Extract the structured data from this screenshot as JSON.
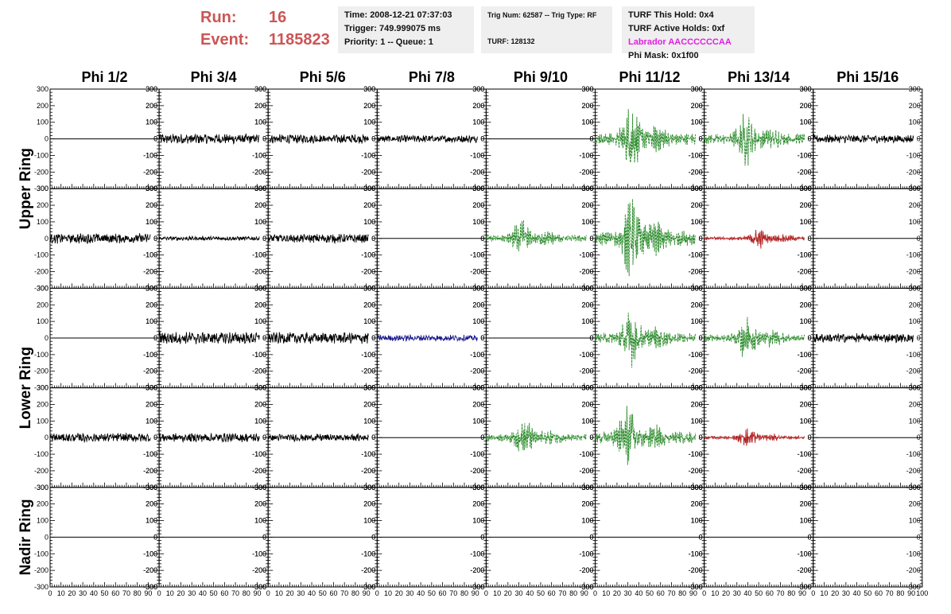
{
  "header": {
    "run_label": "Run:",
    "run_value": "16",
    "event_label": "Event:",
    "event_value": "1185823",
    "time": "Time: 2008-12-21 07:37:03",
    "trigger": "Trigger: 749.999075 ms",
    "priority": "Priority: 1 -- Queue: 1",
    "trig_num": "Trig Num: 62587 -- Trig Type: RF",
    "turf": "TURF: 128132",
    "turf_this_hold": "TURF This Hold: 0x4",
    "turf_active_holds": "TURF Active Holds: 0xf",
    "labrador": "Labrador AACCCCCCAA",
    "phi_mask": "Phi Mask: 0x1f00"
  },
  "chart_data": {
    "type": "line",
    "columns": [
      "Phi 1/2",
      "Phi 3/4",
      "Phi 5/6",
      "Phi 7/8",
      "Phi 9/10",
      "Phi 11/12",
      "Phi 13/14",
      "Phi 15/16"
    ],
    "rows": [
      "Upper Ring",
      "Lower Ring",
      "Nadir Ring"
    ],
    "row_label_spans": [
      2,
      2,
      1
    ],
    "ylim": [
      -300,
      300
    ],
    "y_ticks": [
      300,
      200,
      100,
      0,
      -100,
      -200,
      -300
    ],
    "xlim": [
      0,
      100
    ],
    "x_tick_labels": [
      "0",
      "10",
      "20",
      "30",
      "40",
      "50",
      "60",
      "70",
      "80",
      "90",
      "100"
    ],
    "colors": {
      "normal": "#000000",
      "triggered": "#2a8a2a",
      "hold": "#b22222",
      "masked": "#1a1a8c"
    },
    "grid": false,
    "waveforms": [
      [
        {
          "style": "flat",
          "amp": 0
        },
        {
          "style": "noise",
          "amp": 25,
          "color": "normal"
        },
        {
          "style": "noise",
          "amp": 22,
          "color": "normal"
        },
        {
          "style": "noise",
          "amp": 18,
          "color": "normal"
        },
        {
          "style": "flat",
          "amp": 0
        },
        {
          "style": "pulse",
          "amp": 200,
          "peak": 36,
          "color": "triggered"
        },
        {
          "style": "pulse",
          "amp": 170,
          "peak": 42,
          "color": "triggered"
        },
        {
          "style": "noise",
          "amp": 20,
          "color": "normal"
        }
      ],
      [
        {
          "style": "noise",
          "amp": 25,
          "color": "normal"
        },
        {
          "style": "noise",
          "amp": 10,
          "color": "normal"
        },
        {
          "style": "noise",
          "amp": 22,
          "color": "normal"
        },
        {
          "style": "flat",
          "amp": 0
        },
        {
          "style": "pulse",
          "amp": 110,
          "peak": 35,
          "color": "triggered"
        },
        {
          "style": "pulse",
          "amp": 260,
          "peak": 36,
          "color": "triggered"
        },
        {
          "style": "pulse",
          "amp": 60,
          "peak": 55,
          "color": "hold"
        },
        {
          "style": "flat",
          "amp": 0
        }
      ],
      [
        {
          "style": "flat",
          "amp": 0
        },
        {
          "style": "noise",
          "amp": 30,
          "color": "normal"
        },
        {
          "style": "noise",
          "amp": 28,
          "color": "normal"
        },
        {
          "style": "noise",
          "amp": 15,
          "color": "masked"
        },
        {
          "style": "flat",
          "amp": 0
        },
        {
          "style": "pulse",
          "amp": 170,
          "peak": 36,
          "color": "triggered"
        },
        {
          "style": "pulse",
          "amp": 130,
          "peak": 42,
          "color": "triggered"
        },
        {
          "style": "noise",
          "amp": 22,
          "color": "normal"
        }
      ],
      [
        {
          "style": "noise",
          "amp": 22,
          "color": "normal"
        },
        {
          "style": "noise",
          "amp": 22,
          "color": "normal"
        },
        {
          "style": "noise",
          "amp": 18,
          "color": "normal"
        },
        {
          "style": "flat",
          "amp": 0
        },
        {
          "style": "pulse",
          "amp": 120,
          "peak": 38,
          "color": "triggered"
        },
        {
          "style": "pulse",
          "amp": 200,
          "peak": 33,
          "color": "triggered"
        },
        {
          "style": "pulse",
          "amp": 55,
          "peak": 43,
          "color": "hold"
        },
        {
          "style": "flat",
          "amp": 0
        }
      ],
      [
        {
          "style": "flat",
          "amp": 0
        },
        {
          "style": "flat",
          "amp": 0
        },
        {
          "style": "flat",
          "amp": 0
        },
        {
          "style": "flat",
          "amp": 0
        },
        {
          "style": "flat",
          "amp": 0
        },
        {
          "style": "flat",
          "amp": 0
        },
        {
          "style": "flat",
          "amp": 0
        },
        {
          "style": "flat",
          "amp": 0
        }
      ]
    ]
  }
}
